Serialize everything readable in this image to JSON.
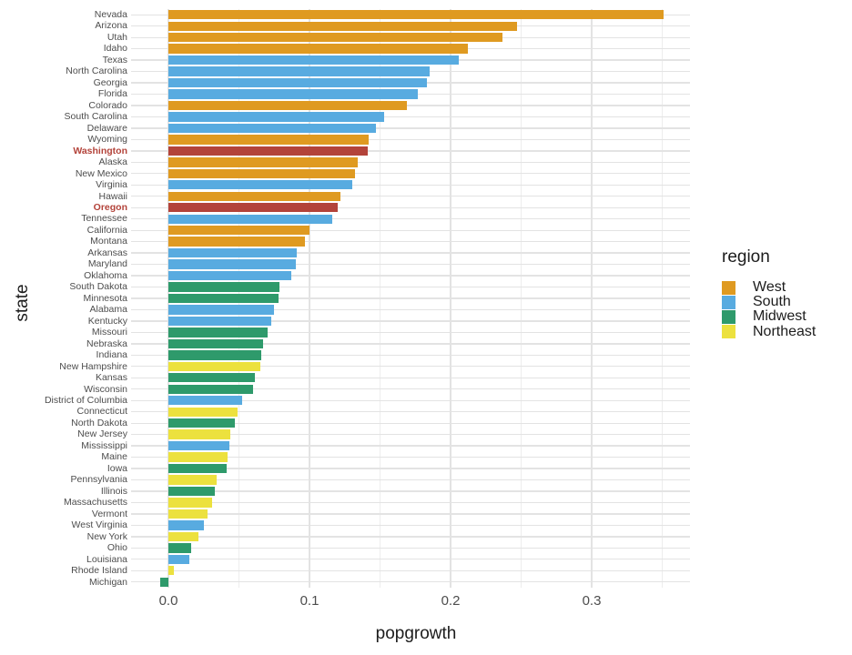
{
  "figure_title": "",
  "chart_data": {
    "type": "bar",
    "orientation": "horizontal",
    "title": "",
    "xlabel": "popgrowth",
    "ylabel": "state",
    "xlim": [
      -0.018,
      0.369
    ],
    "x_major_ticks": [
      0.0,
      0.1,
      0.2,
      0.3
    ],
    "x_tick_labels": [
      "0.0",
      "0.1",
      "0.2",
      "0.3"
    ],
    "x_minor_ticks": [
      0.05,
      0.15,
      0.25,
      0.35
    ],
    "grid": true,
    "legend": {
      "title": "region",
      "position": "right",
      "entries": [
        {
          "label": "West",
          "color": "#df9a21"
        },
        {
          "label": "South",
          "color": "#58abe0"
        },
        {
          "label": "Midwest",
          "color": "#2e9a6b"
        },
        {
          "label": "Northeast",
          "color": "#ece13e"
        }
      ]
    },
    "colors": {
      "West": "#df9a21",
      "South": "#58abe0",
      "Midwest": "#2e9a6b",
      "Northeast": "#ece13e",
      "highlight": "#b3433a"
    },
    "highlighted_states": [
      "Washington",
      "Oregon"
    ],
    "points": [
      {
        "state": "Nevada",
        "region": "West",
        "value": 0.351
      },
      {
        "state": "Arizona",
        "region": "West",
        "value": 0.247
      },
      {
        "state": "Utah",
        "region": "West",
        "value": 0.237
      },
      {
        "state": "Idaho",
        "region": "West",
        "value": 0.212
      },
      {
        "state": "Texas",
        "region": "South",
        "value": 0.206
      },
      {
        "state": "North Carolina",
        "region": "South",
        "value": 0.185
      },
      {
        "state": "Georgia",
        "region": "South",
        "value": 0.183
      },
      {
        "state": "Florida",
        "region": "South",
        "value": 0.177
      },
      {
        "state": "Colorado",
        "region": "West",
        "value": 0.169
      },
      {
        "state": "South Carolina",
        "region": "South",
        "value": 0.153
      },
      {
        "state": "Delaware",
        "region": "South",
        "value": 0.147
      },
      {
        "state": "Wyoming",
        "region": "West",
        "value": 0.142
      },
      {
        "state": "Washington",
        "region": "West",
        "value": 0.141
      },
      {
        "state": "Alaska",
        "region": "West",
        "value": 0.134
      },
      {
        "state": "New Mexico",
        "region": "West",
        "value": 0.132
      },
      {
        "state": "Virginia",
        "region": "South",
        "value": 0.13
      },
      {
        "state": "Hawaii",
        "region": "West",
        "value": 0.122
      },
      {
        "state": "Oregon",
        "region": "West",
        "value": 0.12
      },
      {
        "state": "Tennessee",
        "region": "South",
        "value": 0.116
      },
      {
        "state": "California",
        "region": "West",
        "value": 0.1
      },
      {
        "state": "Montana",
        "region": "West",
        "value": 0.097
      },
      {
        "state": "Arkansas",
        "region": "South",
        "value": 0.091
      },
      {
        "state": "Maryland",
        "region": "South",
        "value": 0.09
      },
      {
        "state": "Oklahoma",
        "region": "South",
        "value": 0.087
      },
      {
        "state": "South Dakota",
        "region": "Midwest",
        "value": 0.079
      },
      {
        "state": "Minnesota",
        "region": "Midwest",
        "value": 0.078
      },
      {
        "state": "Alabama",
        "region": "South",
        "value": 0.075
      },
      {
        "state": "Kentucky",
        "region": "South",
        "value": 0.073
      },
      {
        "state": "Missouri",
        "region": "Midwest",
        "value": 0.07
      },
      {
        "state": "Nebraska",
        "region": "Midwest",
        "value": 0.067
      },
      {
        "state": "Indiana",
        "region": "Midwest",
        "value": 0.066
      },
      {
        "state": "New Hampshire",
        "region": "Northeast",
        "value": 0.065
      },
      {
        "state": "Kansas",
        "region": "Midwest",
        "value": 0.061
      },
      {
        "state": "Wisconsin",
        "region": "Midwest",
        "value": 0.06
      },
      {
        "state": "District of Columbia",
        "region": "South",
        "value": 0.052
      },
      {
        "state": "Connecticut",
        "region": "Northeast",
        "value": 0.049
      },
      {
        "state": "North Dakota",
        "region": "Midwest",
        "value": 0.047
      },
      {
        "state": "New Jersey",
        "region": "Northeast",
        "value": 0.044
      },
      {
        "state": "Mississippi",
        "region": "South",
        "value": 0.043
      },
      {
        "state": "Maine",
        "region": "Northeast",
        "value": 0.042
      },
      {
        "state": "Iowa",
        "region": "Midwest",
        "value": 0.041
      },
      {
        "state": "Pennsylvania",
        "region": "Northeast",
        "value": 0.034
      },
      {
        "state": "Illinois",
        "region": "Midwest",
        "value": 0.033
      },
      {
        "state": "Massachusetts",
        "region": "Northeast",
        "value": 0.031
      },
      {
        "state": "Vermont",
        "region": "Northeast",
        "value": 0.028
      },
      {
        "state": "West Virginia",
        "region": "South",
        "value": 0.025
      },
      {
        "state": "New York",
        "region": "Northeast",
        "value": 0.021
      },
      {
        "state": "Ohio",
        "region": "Midwest",
        "value": 0.016
      },
      {
        "state": "Louisiana",
        "region": "South",
        "value": 0.015
      },
      {
        "state": "Rhode Island",
        "region": "Northeast",
        "value": 0.004
      },
      {
        "state": "Michigan",
        "region": "Midwest",
        "value": -0.006
      }
    ]
  }
}
